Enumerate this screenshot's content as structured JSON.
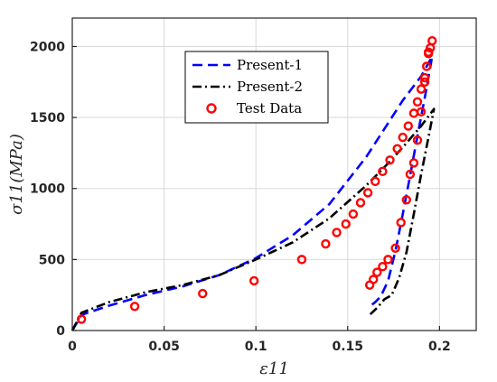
{
  "chart_data": {
    "type": "line",
    "xlabel": "ε11",
    "ylabel": "σ11(MPa)",
    "xlim": [
      0,
      0.22
    ],
    "ylim": [
      0,
      2200
    ],
    "x_ticks": [
      "0",
      "0.05",
      "0.1",
      "0.15",
      "0.2"
    ],
    "y_ticks": [
      "0",
      "500",
      "1000",
      "1500",
      "2000"
    ],
    "grid": true,
    "legend_position": "top-center",
    "series": [
      {
        "name": "Present-1",
        "style": "dashed",
        "color": "#0000ff",
        "x": [
          0.0,
          0.005,
          0.02,
          0.04,
          0.06,
          0.08,
          0.1,
          0.12,
          0.14,
          0.16,
          0.17,
          0.18,
          0.19,
          0.196,
          0.192,
          0.188,
          0.184,
          0.18,
          0.176,
          0.172,
          0.168,
          0.165,
          0.163
        ],
        "y": [
          0,
          110,
          175,
          250,
          310,
          390,
          510,
          670,
          890,
          1220,
          1420,
          1620,
          1790,
          1930,
          1640,
          1370,
          1090,
          820,
          560,
          350,
          240,
          200,
          180
        ]
      },
      {
        "name": "Present-2",
        "style": "dash-dot",
        "color": "#000000",
        "x": [
          0.0,
          0.005,
          0.02,
          0.04,
          0.06,
          0.08,
          0.1,
          0.12,
          0.14,
          0.16,
          0.17,
          0.18,
          0.19,
          0.197,
          0.194,
          0.19,
          0.186,
          0.182,
          0.178,
          0.174,
          0.17,
          0.166,
          0.162
        ],
        "y": [
          0,
          125,
          200,
          270,
          320,
          390,
          500,
          620,
          790,
          1020,
          1150,
          1290,
          1440,
          1560,
          1360,
          1100,
          820,
          550,
          370,
          250,
          220,
          160,
          110
        ]
      },
      {
        "name": "Test Data",
        "style": "markers",
        "color": "#ff0000",
        "x": [
          0.005,
          0.034,
          0.071,
          0.099,
          0.125,
          0.138,
          0.144,
          0.149,
          0.153,
          0.157,
          0.161,
          0.165,
          0.169,
          0.173,
          0.177,
          0.18,
          0.183,
          0.186,
          0.188,
          0.19,
          0.192,
          0.193,
          0.194,
          0.195,
          0.196,
          0.194,
          0.192,
          0.19,
          0.188,
          0.186,
          0.184,
          0.182,
          0.179,
          0.176,
          0.172,
          0.169,
          0.166,
          0.164,
          0.162
        ],
        "y": [
          80,
          170,
          260,
          350,
          500,
          610,
          690,
          750,
          820,
          900,
          970,
          1050,
          1120,
          1200,
          1280,
          1360,
          1440,
          1530,
          1610,
          1700,
          1780,
          1860,
          1950,
          1990,
          2040,
          1960,
          1750,
          1540,
          1340,
          1180,
          1100,
          920,
          760,
          580,
          500,
          450,
          410,
          360,
          320
        ]
      }
    ]
  }
}
